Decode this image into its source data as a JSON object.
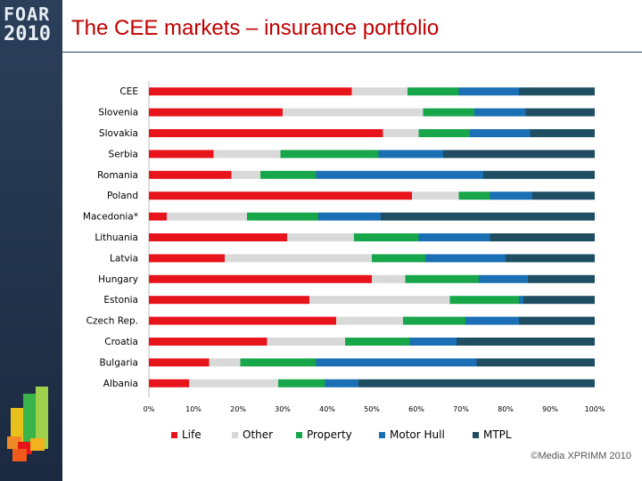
{
  "slide": {
    "title": "The CEE markets – insurance portfolio",
    "logo_text": "FOAR",
    "logo_year": "2010",
    "copyright": "©Media XPRIMM 2010"
  },
  "chart_data": {
    "type": "stacked-bar-horizontal-100",
    "title": "The CEE markets – insurance portfolio",
    "xlabel": "",
    "ylabel": "",
    "xlim": [
      0,
      100
    ],
    "x_ticks": [
      "0%",
      "10%",
      "20%",
      "30%",
      "40%",
      "50%",
      "60%",
      "70%",
      "80%",
      "90%",
      "100%"
    ],
    "legend_position": "bottom",
    "categories": [
      "CEE",
      "Slovenia",
      "Slovakia",
      "Serbia",
      "Romania",
      "Poland",
      "Macedonia*",
      "Lithuania",
      "Latvia",
      "Hungary",
      "Estonia",
      "Czech Rep.",
      "Croatia",
      "Bulgaria",
      "Albania"
    ],
    "series": [
      {
        "name": "Life",
        "color": "#e8141c",
        "values": [
          45.5,
          30,
          52.5,
          14.5,
          18.5,
          59,
          4,
          31,
          17,
          50,
          36,
          42,
          26.5,
          13.5,
          9
        ]
      },
      {
        "name": "Other",
        "color": "#d9d9d9",
        "values": [
          12.5,
          31.5,
          8,
          15,
          6.5,
          10.5,
          18,
          15,
          33,
          7.5,
          31.5,
          15,
          17.5,
          7,
          20
        ]
      },
      {
        "name": "Property",
        "color": "#17a64a",
        "values": [
          11.5,
          11.5,
          11.5,
          22,
          12.5,
          7,
          16,
          14.5,
          12,
          16.5,
          15.5,
          14,
          14.5,
          17,
          10.5
        ]
      },
      {
        "name": "Motor Hull",
        "color": "#1a6fb5",
        "values": [
          13.5,
          11.5,
          13.5,
          14.5,
          37.5,
          9.5,
          14,
          16,
          18,
          11,
          1,
          12,
          10.5,
          36,
          7.5
        ]
      },
      {
        "name": "MTPL",
        "color": "#1f4e63",
        "values": [
          17,
          15.5,
          14.5,
          34,
          25,
          14,
          48,
          23.5,
          20,
          15,
          16,
          17,
          31,
          26.5,
          53
        ]
      }
    ]
  }
}
